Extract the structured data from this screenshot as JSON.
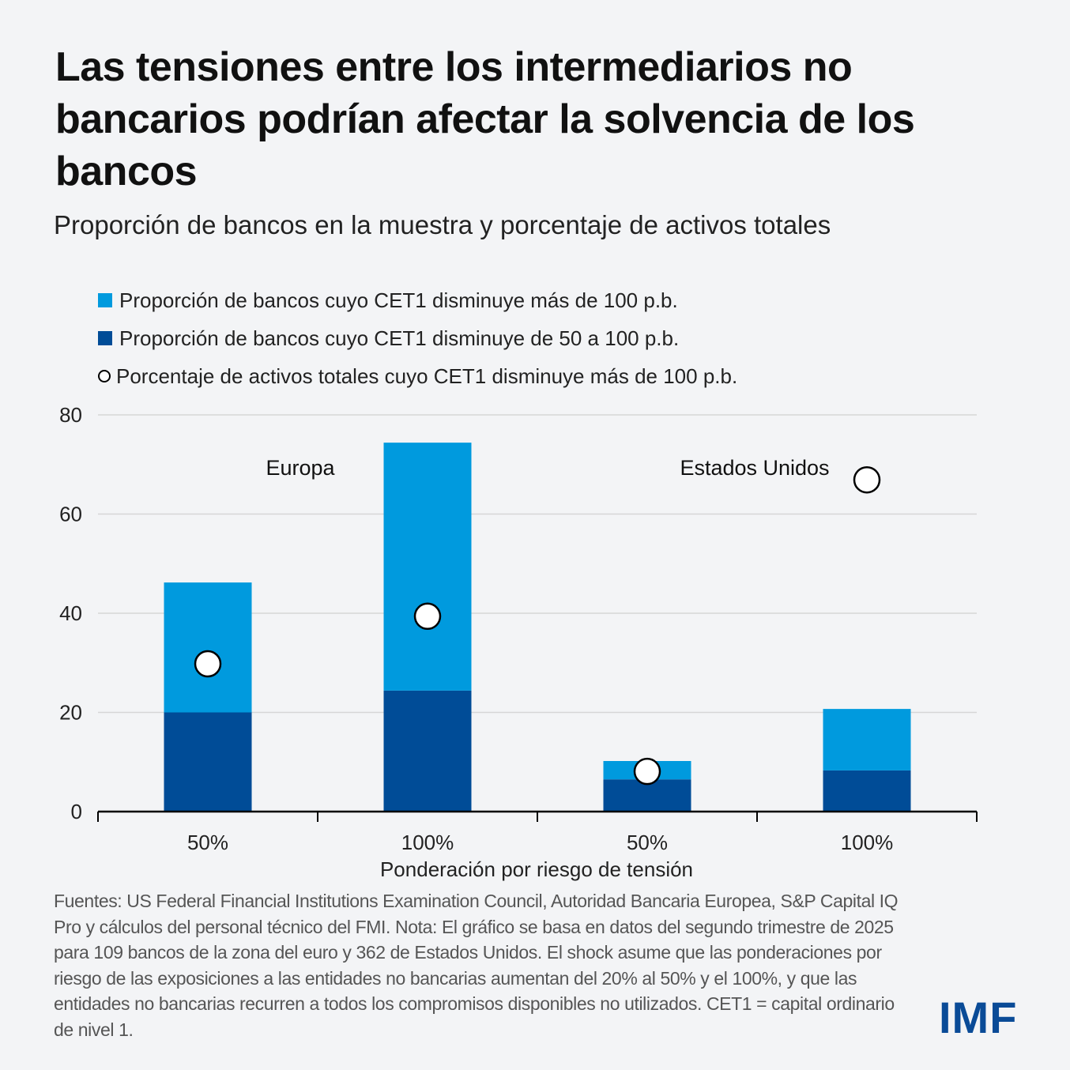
{
  "header": {
    "title": "Las tensiones entre los intermediarios no bancarios podrían afectar la solvencia de los bancos",
    "subtitle": "Proporción de bancos en la muestra y porcentaje de activos totales"
  },
  "legend": [
    {
      "label": "Proporción de bancos cuyo CET1 disminuye más de 100 p.b.",
      "color": "#009ade",
      "marker": "square"
    },
    {
      "label": "Proporción de bancos cuyo CET1 disminuye de 50 a 100 p.b.",
      "color": "#004c97",
      "marker": "square"
    },
    {
      "label": "Porcentaje de activos totales cuyo CET1 disminuye más de 100 p.b.",
      "color": "#ffffff",
      "marker": "circle"
    }
  ],
  "chart_data": {
    "type": "bar",
    "stacked": true,
    "title": "Proporción de bancos en la muestra y porcentaje de activos totales",
    "xlabel": "Ponderación por riesgo de tensión",
    "ylabel": "",
    "ylim": [
      0,
      80
    ],
    "yticks": [
      0,
      20,
      40,
      60,
      80
    ],
    "grid": true,
    "legend_position": "top-left",
    "categories": [
      "50%",
      "100%",
      "50%",
      "100%"
    ],
    "groups": [
      {
        "label": "Europa",
        "categories": [
          0,
          1
        ]
      },
      {
        "label": "Estados Unidos",
        "categories": [
          2,
          3
        ]
      }
    ],
    "series": [
      {
        "name": "Proporción de bancos cuyo CET1 disminuye de 50 a 100 p.b.",
        "kind": "bar",
        "color": "#004c97",
        "values": [
          20,
          24.4,
          6.5,
          8.3
        ]
      },
      {
        "name": "Proporción de bancos cuyo CET1 disminuye más de 100 p.b.",
        "kind": "bar",
        "color": "#009ade",
        "values": [
          26.2,
          50.0,
          3.7,
          12.4
        ]
      },
      {
        "name": "Porcentaje de activos totales cuyo CET1 disminuye más de 100 p.b.",
        "kind": "point",
        "color": "#ffffff",
        "values": [
          29.8,
          39.4,
          8.1,
          66.9
        ]
      }
    ]
  },
  "footer": {
    "source": "Fuentes: US Federal Financial Institutions Examination Council, Autoridad Bancaria Europea, S&P Capital IQ Pro y cálculos del personal técnico del FMI. Nota: El gráfico se basa en datos del segundo trimestre de 2025 para 109 bancos de la zona del euro y 362 de Estados Unidos. El shock asume que las ponderaciones por riesgo de las exposiciones a las entidades no bancarias aumentan del 20% al 50% y el 100%, y que las entidades no bancarias recurren a todos los compromisos disponibles no utilizados. CET1 = capital ordinario de nivel 1.",
    "logo": "IMF"
  }
}
